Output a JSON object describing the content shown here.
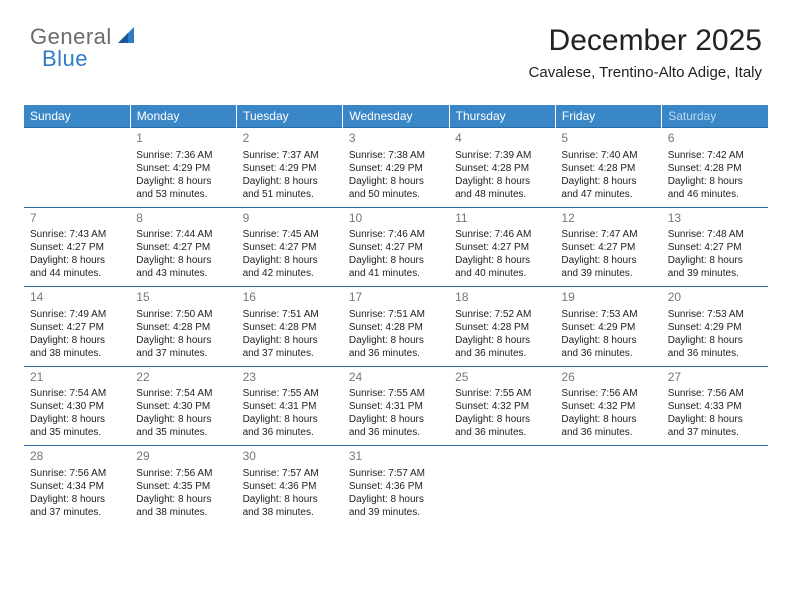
{
  "logo": {
    "text1": "General",
    "text2": "Blue"
  },
  "header": {
    "month_year": "December 2025",
    "location": "Cavalese, Trentino-Alto Adige, Italy"
  },
  "colors": {
    "header_bg": "#3a87c8",
    "header_fg": "#ffffff",
    "sat_fg": "#bedaf0",
    "row_border": "#2a6aa5",
    "daynum": "#777777",
    "logo_gray": "#6b6b6b",
    "logo_blue": "#2f7bc4"
  },
  "weekdays": [
    "Sunday",
    "Monday",
    "Tuesday",
    "Wednesday",
    "Thursday",
    "Friday",
    "Saturday"
  ],
  "weeks": [
    [
      null,
      {
        "day": "1",
        "sunrise": "Sunrise: 7:36 AM",
        "sunset": "Sunset: 4:29 PM",
        "daylight1": "Daylight: 8 hours",
        "daylight2": "and 53 minutes."
      },
      {
        "day": "2",
        "sunrise": "Sunrise: 7:37 AM",
        "sunset": "Sunset: 4:29 PM",
        "daylight1": "Daylight: 8 hours",
        "daylight2": "and 51 minutes."
      },
      {
        "day": "3",
        "sunrise": "Sunrise: 7:38 AM",
        "sunset": "Sunset: 4:29 PM",
        "daylight1": "Daylight: 8 hours",
        "daylight2": "and 50 minutes."
      },
      {
        "day": "4",
        "sunrise": "Sunrise: 7:39 AM",
        "sunset": "Sunset: 4:28 PM",
        "daylight1": "Daylight: 8 hours",
        "daylight2": "and 48 minutes."
      },
      {
        "day": "5",
        "sunrise": "Sunrise: 7:40 AM",
        "sunset": "Sunset: 4:28 PM",
        "daylight1": "Daylight: 8 hours",
        "daylight2": "and 47 minutes."
      },
      {
        "day": "6",
        "sunrise": "Sunrise: 7:42 AM",
        "sunset": "Sunset: 4:28 PM",
        "daylight1": "Daylight: 8 hours",
        "daylight2": "and 46 minutes."
      }
    ],
    [
      {
        "day": "7",
        "sunrise": "Sunrise: 7:43 AM",
        "sunset": "Sunset: 4:27 PM",
        "daylight1": "Daylight: 8 hours",
        "daylight2": "and 44 minutes."
      },
      {
        "day": "8",
        "sunrise": "Sunrise: 7:44 AM",
        "sunset": "Sunset: 4:27 PM",
        "daylight1": "Daylight: 8 hours",
        "daylight2": "and 43 minutes."
      },
      {
        "day": "9",
        "sunrise": "Sunrise: 7:45 AM",
        "sunset": "Sunset: 4:27 PM",
        "daylight1": "Daylight: 8 hours",
        "daylight2": "and 42 minutes."
      },
      {
        "day": "10",
        "sunrise": "Sunrise: 7:46 AM",
        "sunset": "Sunset: 4:27 PM",
        "daylight1": "Daylight: 8 hours",
        "daylight2": "and 41 minutes."
      },
      {
        "day": "11",
        "sunrise": "Sunrise: 7:46 AM",
        "sunset": "Sunset: 4:27 PM",
        "daylight1": "Daylight: 8 hours",
        "daylight2": "and 40 minutes."
      },
      {
        "day": "12",
        "sunrise": "Sunrise: 7:47 AM",
        "sunset": "Sunset: 4:27 PM",
        "daylight1": "Daylight: 8 hours",
        "daylight2": "and 39 minutes."
      },
      {
        "day": "13",
        "sunrise": "Sunrise: 7:48 AM",
        "sunset": "Sunset: 4:27 PM",
        "daylight1": "Daylight: 8 hours",
        "daylight2": "and 39 minutes."
      }
    ],
    [
      {
        "day": "14",
        "sunrise": "Sunrise: 7:49 AM",
        "sunset": "Sunset: 4:27 PM",
        "daylight1": "Daylight: 8 hours",
        "daylight2": "and 38 minutes."
      },
      {
        "day": "15",
        "sunrise": "Sunrise: 7:50 AM",
        "sunset": "Sunset: 4:28 PM",
        "daylight1": "Daylight: 8 hours",
        "daylight2": "and 37 minutes."
      },
      {
        "day": "16",
        "sunrise": "Sunrise: 7:51 AM",
        "sunset": "Sunset: 4:28 PM",
        "daylight1": "Daylight: 8 hours",
        "daylight2": "and 37 minutes."
      },
      {
        "day": "17",
        "sunrise": "Sunrise: 7:51 AM",
        "sunset": "Sunset: 4:28 PM",
        "daylight1": "Daylight: 8 hours",
        "daylight2": "and 36 minutes."
      },
      {
        "day": "18",
        "sunrise": "Sunrise: 7:52 AM",
        "sunset": "Sunset: 4:28 PM",
        "daylight1": "Daylight: 8 hours",
        "daylight2": "and 36 minutes."
      },
      {
        "day": "19",
        "sunrise": "Sunrise: 7:53 AM",
        "sunset": "Sunset: 4:29 PM",
        "daylight1": "Daylight: 8 hours",
        "daylight2": "and 36 minutes."
      },
      {
        "day": "20",
        "sunrise": "Sunrise: 7:53 AM",
        "sunset": "Sunset: 4:29 PM",
        "daylight1": "Daylight: 8 hours",
        "daylight2": "and 36 minutes."
      }
    ],
    [
      {
        "day": "21",
        "sunrise": "Sunrise: 7:54 AM",
        "sunset": "Sunset: 4:30 PM",
        "daylight1": "Daylight: 8 hours",
        "daylight2": "and 35 minutes."
      },
      {
        "day": "22",
        "sunrise": "Sunrise: 7:54 AM",
        "sunset": "Sunset: 4:30 PM",
        "daylight1": "Daylight: 8 hours",
        "daylight2": "and 35 minutes."
      },
      {
        "day": "23",
        "sunrise": "Sunrise: 7:55 AM",
        "sunset": "Sunset: 4:31 PM",
        "daylight1": "Daylight: 8 hours",
        "daylight2": "and 36 minutes."
      },
      {
        "day": "24",
        "sunrise": "Sunrise: 7:55 AM",
        "sunset": "Sunset: 4:31 PM",
        "daylight1": "Daylight: 8 hours",
        "daylight2": "and 36 minutes."
      },
      {
        "day": "25",
        "sunrise": "Sunrise: 7:55 AM",
        "sunset": "Sunset: 4:32 PM",
        "daylight1": "Daylight: 8 hours",
        "daylight2": "and 36 minutes."
      },
      {
        "day": "26",
        "sunrise": "Sunrise: 7:56 AM",
        "sunset": "Sunset: 4:32 PM",
        "daylight1": "Daylight: 8 hours",
        "daylight2": "and 36 minutes."
      },
      {
        "day": "27",
        "sunrise": "Sunrise: 7:56 AM",
        "sunset": "Sunset: 4:33 PM",
        "daylight1": "Daylight: 8 hours",
        "daylight2": "and 37 minutes."
      }
    ],
    [
      {
        "day": "28",
        "sunrise": "Sunrise: 7:56 AM",
        "sunset": "Sunset: 4:34 PM",
        "daylight1": "Daylight: 8 hours",
        "daylight2": "and 37 minutes."
      },
      {
        "day": "29",
        "sunrise": "Sunrise: 7:56 AM",
        "sunset": "Sunset: 4:35 PM",
        "daylight1": "Daylight: 8 hours",
        "daylight2": "and 38 minutes."
      },
      {
        "day": "30",
        "sunrise": "Sunrise: 7:57 AM",
        "sunset": "Sunset: 4:36 PM",
        "daylight1": "Daylight: 8 hours",
        "daylight2": "and 38 minutes."
      },
      {
        "day": "31",
        "sunrise": "Sunrise: 7:57 AM",
        "sunset": "Sunset: 4:36 PM",
        "daylight1": "Daylight: 8 hours",
        "daylight2": "and 39 minutes."
      },
      null,
      null,
      null
    ]
  ]
}
